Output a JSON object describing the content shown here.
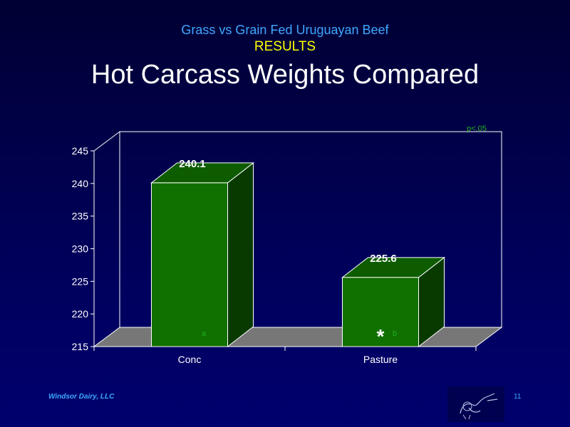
{
  "header": {
    "subtitle": "Grass vs Grain Fed Uruguayan Beef",
    "results": "RESULTS",
    "title": "Hot Carcass Weights Compared"
  },
  "footer": {
    "company": "Windsor Dairy, LLC",
    "page": "11"
  },
  "colors": {
    "bar_front": "#107000",
    "bar_top": "#0d5c00",
    "bar_side": "#083a00",
    "floor": "#777777",
    "annotation": "#22b020"
  },
  "chart_data": {
    "type": "bar",
    "title": "Hot Carcass Weights Compared",
    "categories": [
      "Conc",
      "Pasture"
    ],
    "values": [
      240.1,
      225.6
    ],
    "data_labels": [
      "240.1",
      "225.6"
    ],
    "ylim": [
      215,
      245
    ],
    "yticks": [
      215,
      220,
      225,
      230,
      235,
      240,
      245
    ],
    "grid": false,
    "three_d": true,
    "annotations": {
      "letters": [
        "a",
        "b"
      ],
      "significance": "p<.05",
      "marker": "*"
    }
  }
}
